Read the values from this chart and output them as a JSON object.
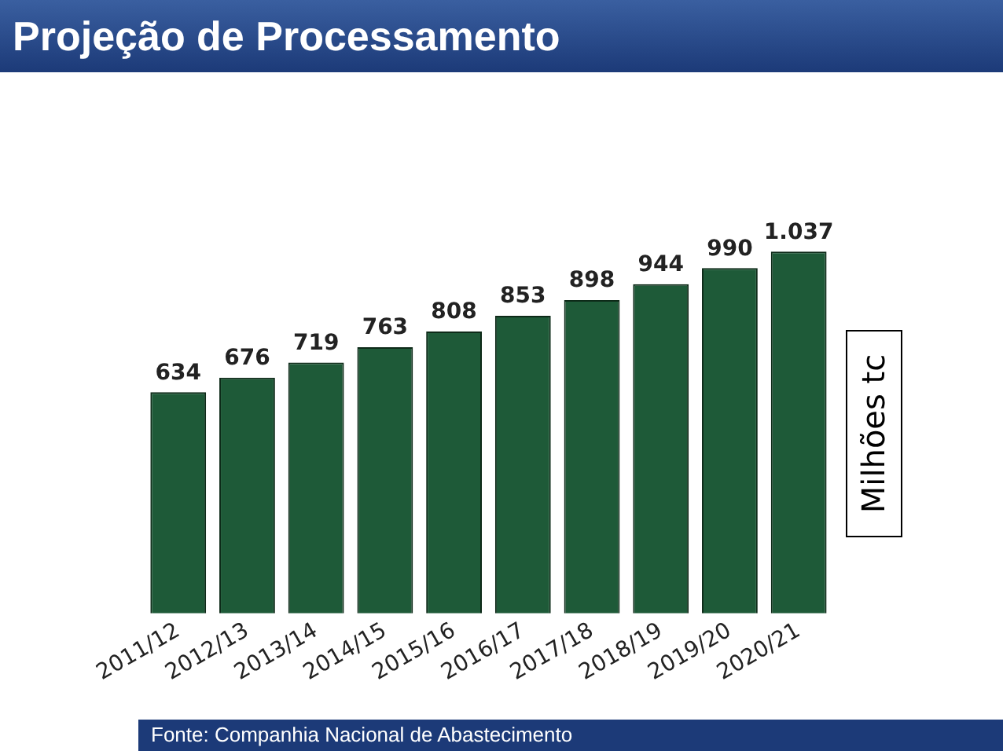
{
  "chart_data": {
    "type": "bar",
    "title": "Projeção de Processamento",
    "ylabel": "Milhões tc",
    "categories": [
      "2011/12",
      "2012/13",
      "2013/14",
      "2014/15",
      "2015/16",
      "2016/17",
      "2017/18",
      "2018/19",
      "2019/20",
      "2020/21"
    ],
    "values": [
      634,
      676,
      719,
      763,
      808,
      853,
      898,
      944,
      990,
      1037
    ],
    "value_labels": [
      "634",
      "676",
      "719",
      "763",
      "808",
      "853",
      "898",
      "944",
      "990",
      "1.037"
    ],
    "color": "#1e5a38",
    "grid": false,
    "legend": false,
    "tick_labels": "x",
    "annotations": [
      "Fonte: Companhia Nacional de Abastecimento"
    ]
  }
}
